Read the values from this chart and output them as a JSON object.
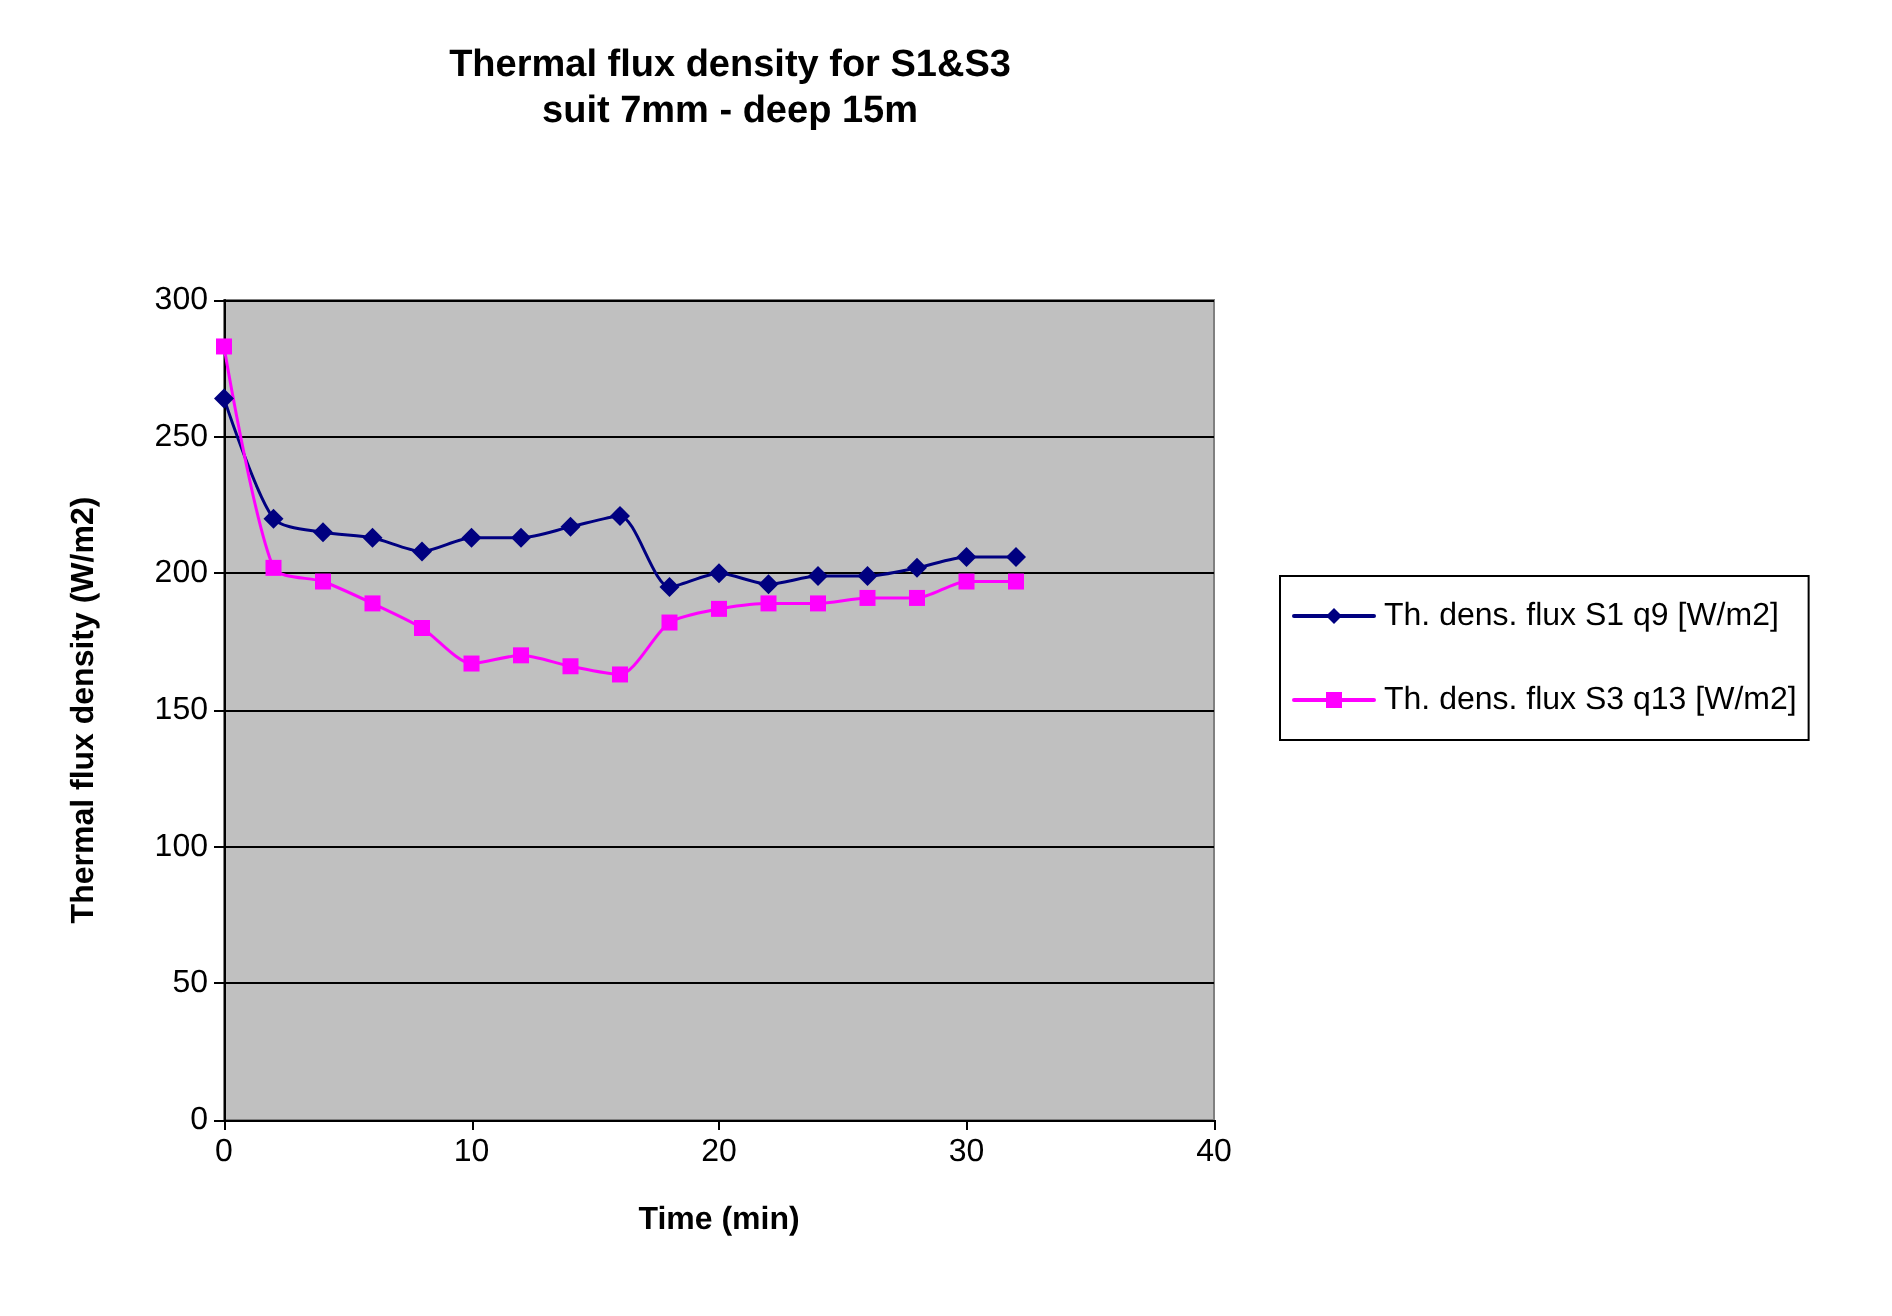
{
  "chart_data": {
    "type": "line",
    "title": "Thermal flux density for S1&S3",
    "subtitle": "suit 7mm - deep 15m",
    "xlabel": "Time (min)",
    "ylabel": "Thermal flux density (W/m2)",
    "x": [
      0,
      2,
      4,
      6,
      8,
      10,
      12,
      14,
      16,
      18,
      20,
      22,
      24,
      26,
      28,
      30,
      32
    ],
    "series": [
      {
        "name": "Th. dens. flux S1 q9 [W/m2]",
        "color": "#000080",
        "marker": "diamond",
        "values": [
          264,
          220,
          215,
          213,
          208,
          213,
          213,
          217,
          221,
          195,
          200,
          196,
          199,
          199,
          202,
          206,
          206
        ]
      },
      {
        "name": "Th. dens. flux S3 q13 [W/m2]",
        "color": "#ff00ff",
        "marker": "square",
        "values": [
          283,
          202,
          197,
          189,
          180,
          167,
          170,
          166,
          163,
          182,
          187,
          189,
          189,
          191,
          191,
          197,
          197
        ]
      }
    ],
    "xlim": [
      0,
      40
    ],
    "xticks": [
      0,
      10,
      20,
      30,
      40
    ],
    "ylim": [
      0,
      300
    ],
    "yticks": [
      0,
      50,
      100,
      150,
      200,
      250,
      300
    ],
    "grid": "y",
    "legend": "right",
    "line_style": "solid"
  }
}
